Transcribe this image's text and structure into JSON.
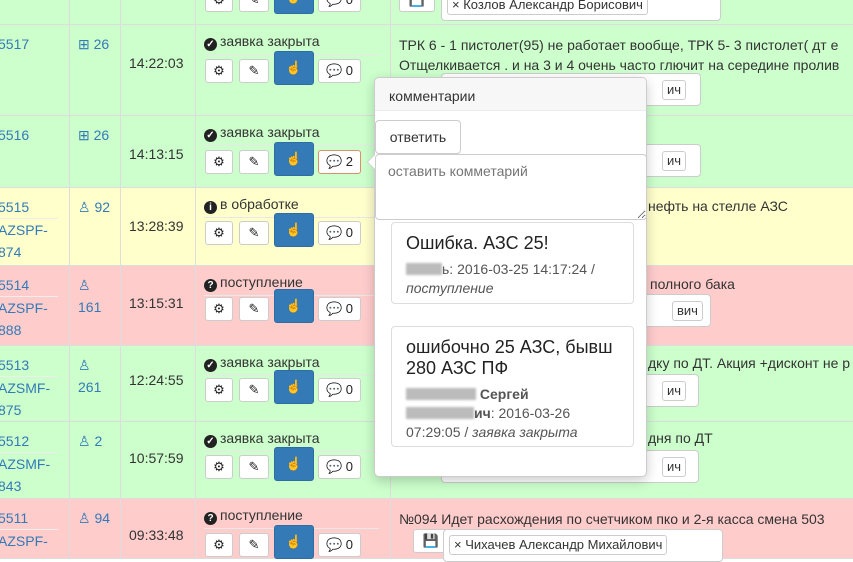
{
  "colors": {
    "closed": "#ccffcc",
    "processing": "#ffffcc",
    "incoming": "#ffcccc",
    "link": "#337ab7",
    "primary": "#337ab7"
  },
  "rows": [
    {
      "id": "",
      "os": "",
      "time": "",
      "status": "",
      "comments": "0",
      "desc": "",
      "user": "Козлов Александр Борисович"
    },
    {
      "id": "5517",
      "id2": "",
      "id3": "",
      "os_icon": "windows-icon",
      "os": "26",
      "time": "14:22:03",
      "status_icon": "check-circle-icon",
      "status": "заявка закрыта",
      "comments": "0",
      "desc": "ТРК 6 - 1 пистолет(95) не работает вообще, ТРК 5- 3 пистолет( дт е",
      "desc2": "Отщелкивается . и на 3 и 4 очень часто глючит на середине пролив",
      "user_frag": "ич"
    },
    {
      "id": "5516",
      "os_icon": "windows-icon",
      "os": "26",
      "time": "14:13:15",
      "status": "заявка закрыта",
      "comments": "2",
      "user_frag": "ич"
    },
    {
      "id": "5515",
      "id2": "AZSPF-",
      "id3": "874",
      "os_icon": "linux-icon",
      "os": "92",
      "time": "13:28:39",
      "status": "в обработке",
      "comments": "0",
      "desc_frag": "нефть на стелле АЗС"
    },
    {
      "id": "5514",
      "id2": "AZSPF-",
      "id3": "888",
      "os_icon": "linux-icon",
      "os": "161",
      "time": "13:15:31",
      "status": "поступление",
      "comments": "0",
      "desc_frag": "полного бака",
      "user_frag": "вич"
    },
    {
      "id": "5513",
      "id2": "AZSMF-",
      "id3": "875",
      "os_icon": "linux-icon",
      "os": "261",
      "time": "12:24:55",
      "status": "заявка закрыта",
      "comments": "0",
      "desc_frag": "дку по ДТ. Акция +дисконт не р",
      "user_frag": "ич"
    },
    {
      "id": "5512",
      "id2": "AZSMF-",
      "id3": "843",
      "os_icon": "linux-icon",
      "os": "2",
      "time": "10:57:59",
      "status": "заявка закрыта",
      "comments": "0",
      "desc_frag": "дня по ДТ",
      "user_frag": "ич"
    },
    {
      "id": "5511",
      "id2": "AZSPF-",
      "os_icon": "linux-icon",
      "os": "94",
      "time": "09:33:48",
      "status": "поступление",
      "comments": "0",
      "desc": "№094 Идет расхождения по счетчиком пко и 2-я касса смена 503",
      "user": "Чихачев Александр Михайлович"
    }
  ],
  "popup": {
    "title": "комментарии",
    "reply_label": "ответить",
    "placeholder": "оставить комметарий",
    "comments": [
      {
        "text": "Ошибка. АЗС 25!",
        "author_frag": "ь",
        "date": ": 2016-03-25 14:17:24 /",
        "status": "поступление"
      },
      {
        "text": "ошибочно 25 АЗС, бывш 280 АЗС ПФ",
        "author_line1": "Сергей",
        "author_frag": "ич",
        "date": ": 2016-03-26",
        "date2": "07:29:05 /",
        "status": "заявка закрыта"
      }
    ]
  }
}
